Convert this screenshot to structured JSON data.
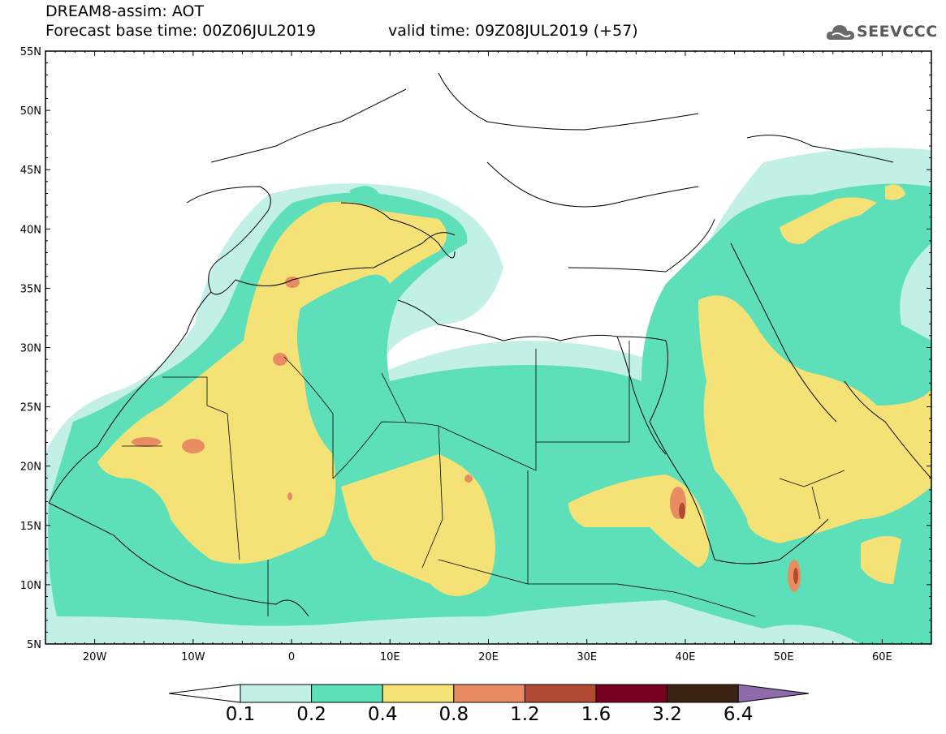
{
  "header": {
    "line1": "DREAM8-assim: AOT",
    "line2": "Forecast base time: 00Z06JUL2019",
    "valid": "valid time: 09Z08JUL2019 (+57)"
  },
  "logo": {
    "text": "SEEVCCC",
    "icon": "cloud-icon"
  },
  "map": {
    "lat_labels": [
      "55N",
      "50N",
      "45N",
      "40N",
      "35N",
      "30N",
      "25N",
      "20N",
      "15N",
      "10N",
      "5N"
    ],
    "lon_labels": [
      "20W",
      "10W",
      "0",
      "10E",
      "20E",
      "30E",
      "40E",
      "50E",
      "60E"
    ],
    "lat_range": [
      5,
      55
    ],
    "lon_range": [
      -25,
      65
    ],
    "variable": "AOT"
  },
  "legend": {
    "thresholds": [
      "0.1",
      "0.2",
      "0.4",
      "0.8",
      "1.2",
      "1.6",
      "3.2",
      "6.4"
    ],
    "colors": [
      "#ffffff",
      "#c2f0e7",
      "#5ddfb9",
      "#f4e276",
      "#e98c62",
      "#b24a33",
      "#780021",
      "#3a2313",
      "#8f6bab"
    ]
  }
}
